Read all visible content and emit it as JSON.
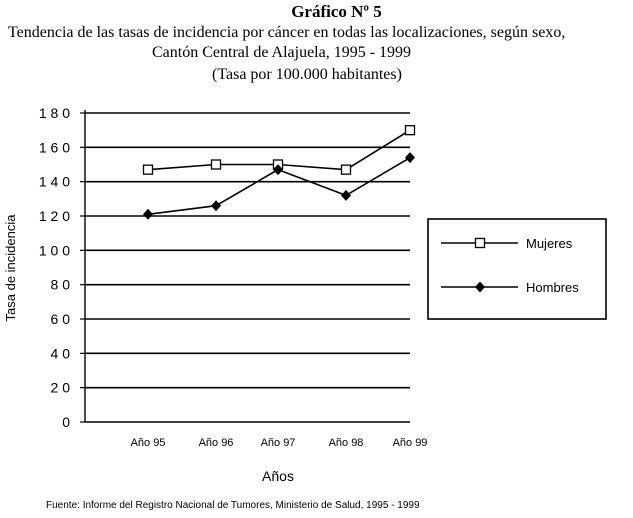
{
  "title": "Gráfico Nº 5",
  "subtitle_line1": "Tendencia de las tasas de incidencia por cáncer en todas las localizaciones, según sexo,",
  "subtitle_line2": "Cantón Central de Alajuela, 1995 - 1999",
  "subtitle_line3": "(Tasa por 100.000 habitantes)",
  "source": "Fuente: Informe del Registro Nacional de Tumores, Ministerio de Salud, 1995 - 1999",
  "chart_data": {
    "type": "line",
    "categories": [
      "Año 95",
      "Año 96",
      "Año 97",
      "Año 98",
      "Año 99"
    ],
    "series": [
      {
        "name": "Mujeres",
        "marker": "open-square",
        "values": [
          147,
          150,
          150,
          147,
          170
        ]
      },
      {
        "name": "Hombres",
        "marker": "filled-diamond",
        "values": [
          121,
          126,
          147,
          132,
          154
        ]
      }
    ],
    "xlabel": "Años",
    "ylabel": "Tasa de incidencia",
    "ylim": [
      0,
      180
    ],
    "yticks": [
      "0",
      "2 0",
      "4 0",
      "6 0",
      "8 0",
      "1 0 0",
      "1 2 0",
      "1 4 0",
      "1 6 0",
      "1 8 0"
    ],
    "grid": true,
    "legend": "right",
    "line_color": "#000000"
  }
}
